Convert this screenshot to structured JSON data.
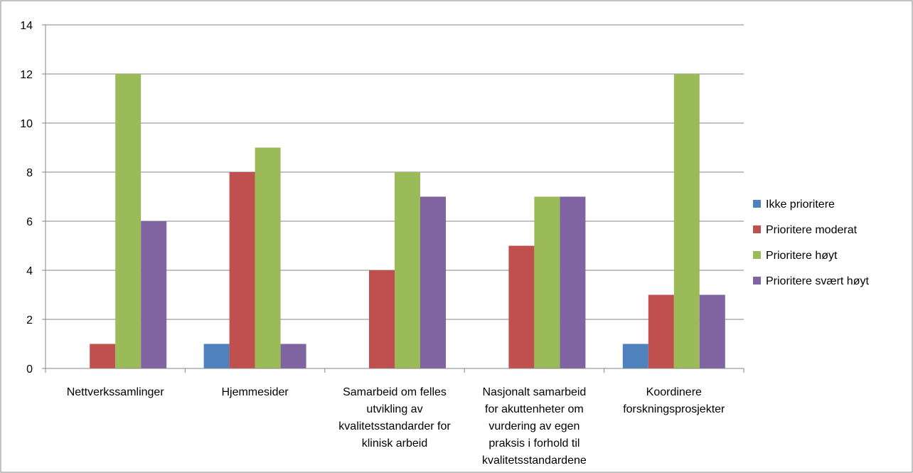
{
  "chart_data": {
    "type": "bar",
    "title": "",
    "xlabel": "",
    "ylabel": "",
    "ylim": [
      0,
      14
    ],
    "yticks": [
      0,
      2,
      4,
      6,
      8,
      10,
      12,
      14
    ],
    "grid": true,
    "legend_position": "right",
    "categories": [
      [
        "Nettverkssamlinger"
      ],
      [
        "Hjemmesider"
      ],
      [
        "Samarbeid om felles",
        "utvikling av",
        "kvalitetsstandarder for",
        "klinisk arbeid"
      ],
      [
        "Nasjonalt samarbeid",
        "for akuttenheter om",
        "vurdering av egen",
        "praksis i forhold til",
        "kvalitetsstandardene"
      ],
      [
        "Koordinere",
        "forskningsprosjekter"
      ]
    ],
    "series": [
      {
        "name": "Ikke prioritere",
        "color": "#4F81BD",
        "values": [
          0,
          1,
          0,
          0,
          1
        ]
      },
      {
        "name": "Prioritere moderat",
        "color": "#C0504D",
        "values": [
          1,
          8,
          4,
          5,
          3
        ]
      },
      {
        "name": "Prioritere høyt",
        "color": "#9BBB59",
        "values": [
          12,
          9,
          8,
          7,
          12
        ]
      },
      {
        "name": "Prioritere svært høyt",
        "color": "#8064A2",
        "values": [
          6,
          1,
          7,
          7,
          3
        ]
      }
    ]
  }
}
